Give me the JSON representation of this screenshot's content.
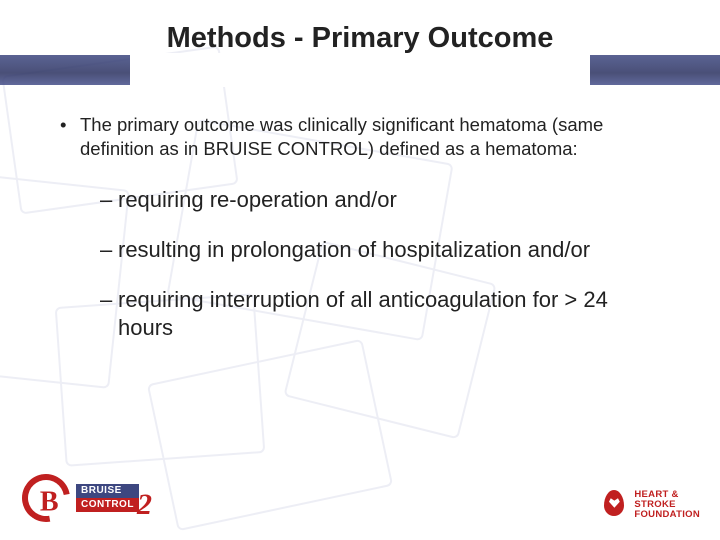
{
  "title": "Methods - Primary Outcome",
  "lead_bullet": "•",
  "lead_text": "The primary outcome was clinically significant hematoma (same definition as in BRUISE CONTROL) defined as a hematoma:",
  "sub_items": [
    "requiring re-operation and/or",
    "resulting in prolongation of hospitalization and/or",
    "requiring interruption of all anticoagulation for > 24 hours"
  ],
  "dash": "–",
  "logo_left": {
    "line1": "BRUISE",
    "line2": "CONTROL",
    "digit": "2",
    "letter": "B"
  },
  "logo_right": {
    "line1": "HEART &",
    "line2": "STROKE",
    "line3": "FOUNDATION"
  },
  "colors": {
    "band": "#3d4780",
    "accent_red": "#c02020",
    "bg_lines": "#8a90c0",
    "text": "#222222"
  }
}
